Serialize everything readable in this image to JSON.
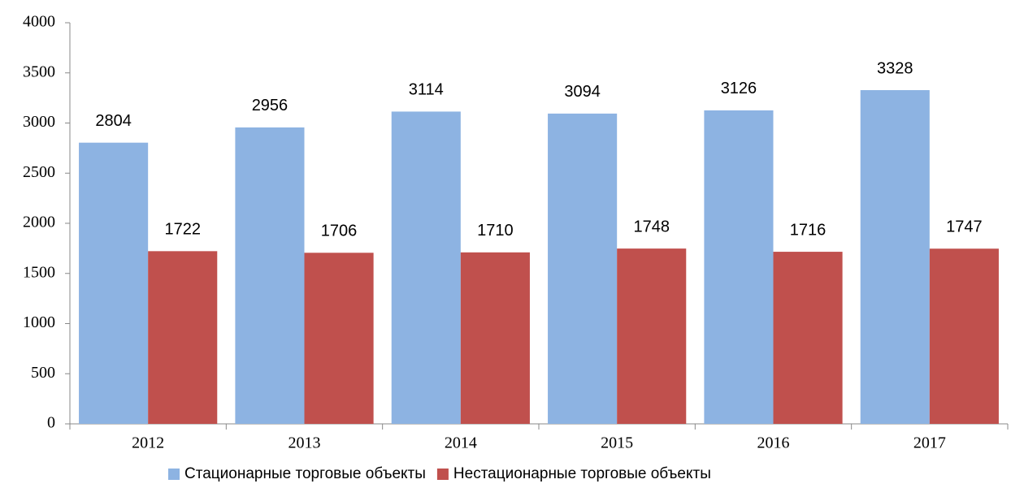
{
  "chart_data": {
    "type": "bar",
    "categories": [
      "2012",
      "2013",
      "2014",
      "2015",
      "2016",
      "2017"
    ],
    "series": [
      {
        "name": "Стационарные торговые объекты",
        "color": "#8db3e2",
        "values": [
          2804,
          2956,
          3114,
          3094,
          3126,
          3328
        ]
      },
      {
        "name": "Нестационарные торговые объекты",
        "color": "#c0504d",
        "values": [
          1722,
          1706,
          1710,
          1748,
          1716,
          1747
        ]
      }
    ],
    "ylim": [
      0,
      4000
    ],
    "yticks": [
      0,
      500,
      1000,
      1500,
      2000,
      2500,
      3000,
      3500,
      4000
    ],
    "legend": "bottom",
    "data_labels": true
  }
}
